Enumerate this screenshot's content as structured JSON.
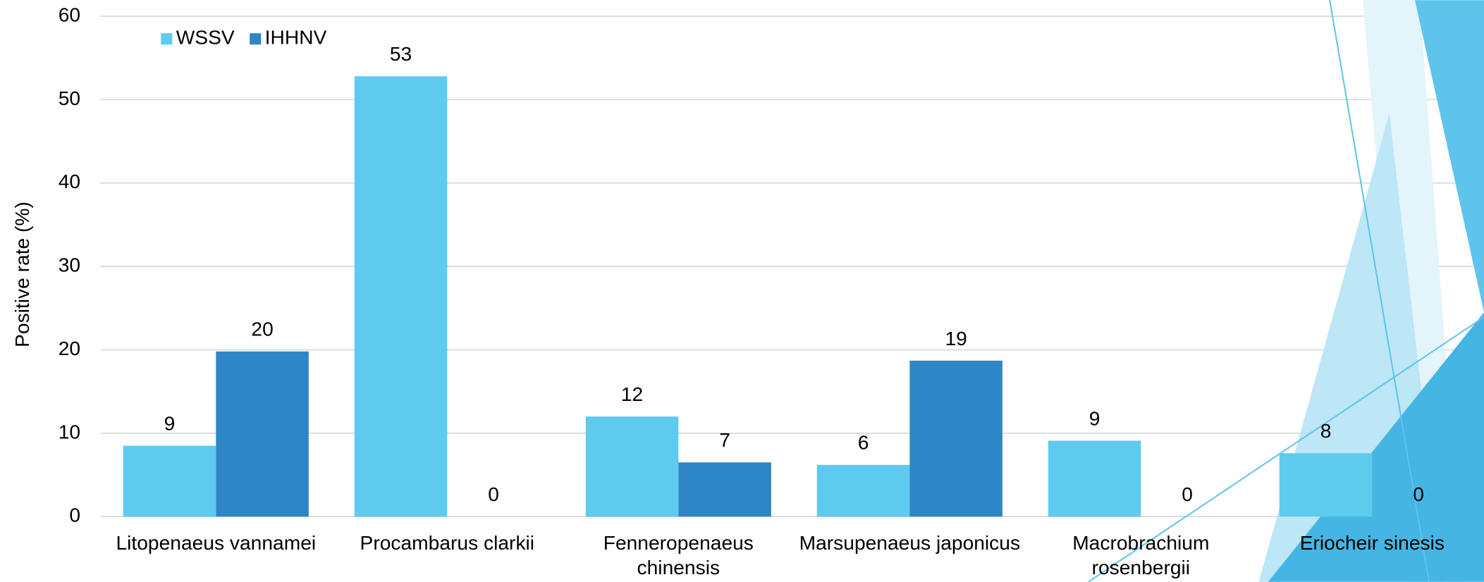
{
  "chart_data": {
    "type": "bar",
    "y_label": "Positive rate (%)",
    "categories": [
      "Litopenaeus vannamei",
      "Procambarus clarkii",
      "Fenneropenaeus chinensis",
      "Marsupenaeus japonicus",
      "Macrobrachium rosenbergii",
      "Eriocheir sinesis"
    ],
    "series": [
      {
        "name": "WSSV",
        "color": "#5ecbee",
        "values": [
          8.5,
          52.8,
          12.0,
          6.2,
          9.1,
          7.6
        ],
        "value_labels": [
          "9",
          "53",
          "12",
          "6",
          "9",
          "8"
        ]
      },
      {
        "name": "IHHNV",
        "color": "#2e86c6",
        "values": [
          19.8,
          0,
          6.5,
          18.7,
          0,
          0
        ],
        "value_labels": [
          "20",
          "0",
          "7",
          "19",
          "0",
          "0"
        ]
      }
    ],
    "ylim": [
      0,
      60
    ],
    "yticks": [
      0,
      10,
      20,
      30,
      40,
      50,
      60
    ],
    "grid": true,
    "legend": "top-left"
  }
}
